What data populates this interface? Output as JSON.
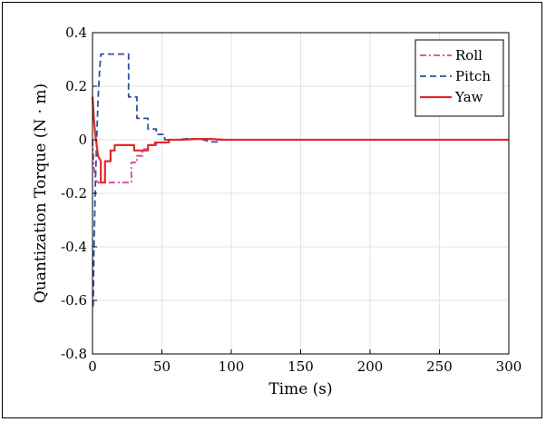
{
  "chart_data": {
    "type": "line",
    "xlabel": "Time (s)",
    "ylabel": "Quantization Torque (N · m)",
    "xlim": [
      0,
      300
    ],
    "ylim": [
      -0.8,
      0.4
    ],
    "xticks": [
      "0",
      "50",
      "100",
      "150",
      "200",
      "250",
      "300"
    ],
    "yticks": [
      "0.4",
      "0.2",
      "0",
      "-0.2",
      "-0.4",
      "-0.6",
      "-0.8"
    ],
    "grid": true,
    "legend_position": "top-right",
    "series": [
      {
        "name": "Roll",
        "color": "#d147a8",
        "dash": "dashdot",
        "points": [
          [
            0,
            0
          ],
          [
            1,
            -0.1
          ],
          [
            2,
            -0.14
          ],
          [
            3,
            -0.155
          ],
          [
            4,
            -0.16
          ],
          [
            8,
            -0.16
          ],
          [
            12,
            -0.16
          ],
          [
            28,
            -0.16
          ],
          [
            28,
            -0.085
          ],
          [
            32,
            -0.085
          ],
          [
            32,
            -0.06
          ],
          [
            36,
            -0.06
          ],
          [
            36,
            -0.035
          ],
          [
            40,
            -0.035
          ],
          [
            40,
            -0.02
          ],
          [
            46,
            -0.02
          ],
          [
            46,
            -0.01
          ],
          [
            55,
            -0.01
          ],
          [
            55,
            0
          ],
          [
            60,
            0
          ],
          [
            70,
            0.003
          ],
          [
            80,
            0.003
          ],
          [
            90,
            0
          ],
          [
            300,
            0
          ]
        ]
      },
      {
        "name": "Pitch",
        "color": "#2f4ea0",
        "dash": "dashed",
        "points": [
          [
            0,
            -0.62
          ],
          [
            0.5,
            -0.62
          ],
          [
            1,
            -0.42
          ],
          [
            2,
            -0.18
          ],
          [
            3,
            0
          ],
          [
            4,
            0.15
          ],
          [
            5,
            0.25
          ],
          [
            6,
            0.32
          ],
          [
            12,
            0.32
          ],
          [
            26,
            0.32
          ],
          [
            26,
            0.16
          ],
          [
            32,
            0.16
          ],
          [
            32,
            0.08
          ],
          [
            40,
            0.08
          ],
          [
            40,
            0.04
          ],
          [
            46,
            0.04
          ],
          [
            46,
            0.02
          ],
          [
            52,
            0.02
          ],
          [
            52,
            0
          ],
          [
            60,
            0
          ],
          [
            70,
            0.005
          ],
          [
            80,
            0
          ],
          [
            85,
            -0.008
          ],
          [
            92,
            -0.008
          ],
          [
            92,
            0
          ],
          [
            300,
            0
          ]
        ]
      },
      {
        "name": "Yaw",
        "color": "#e02a2a",
        "dash": "solid",
        "points": [
          [
            0,
            0.16
          ],
          [
            1,
            0.08
          ],
          [
            2,
            0.02
          ],
          [
            3,
            -0.02
          ],
          [
            4,
            -0.06
          ],
          [
            6,
            -0.08
          ],
          [
            6,
            -0.16
          ],
          [
            9,
            -0.16
          ],
          [
            9,
            -0.08
          ],
          [
            13,
            -0.08
          ],
          [
            13,
            -0.04
          ],
          [
            16,
            -0.04
          ],
          [
            16,
            -0.02
          ],
          [
            30,
            -0.02
          ],
          [
            30,
            -0.04
          ],
          [
            40,
            -0.04
          ],
          [
            40,
            -0.02
          ],
          [
            45,
            -0.02
          ],
          [
            45,
            -0.01
          ],
          [
            55,
            -0.01
          ],
          [
            55,
            0
          ],
          [
            65,
            0
          ],
          [
            75,
            0.003
          ],
          [
            85,
            0.003
          ],
          [
            95,
            0
          ],
          [
            300,
            0
          ]
        ]
      }
    ]
  }
}
